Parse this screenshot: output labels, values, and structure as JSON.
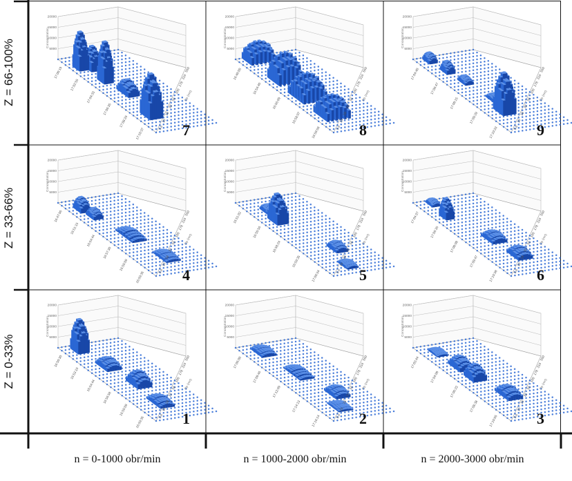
{
  "row_labels": [
    "Z = 66-100%",
    "Z = 33-66%",
    "Z = 0-33%"
  ],
  "column_labels": [
    "n = 0-1000 obr/min",
    "n = 1000-2000 obr/min",
    "n = 2000-3000 obr/min"
  ],
  "colors": {
    "bar": "#2a67d4",
    "bar_side": "#1847a8",
    "bar_top": "#5b8fe6",
    "frame": "#111111",
    "grid": "#b8b8b8"
  },
  "chart_data": [
    {
      "type": "bar",
      "panel": "7",
      "row": 0,
      "col": 0,
      "zticks": [
        "5000",
        "10000",
        "15000",
        "20000"
      ],
      "zlabel": "Concentration",
      "xticks": [
        "17:00:19",
        "17:02:55",
        "17:04:33",
        "17:06:35",
        "17:08:29",
        "17:10:37"
      ],
      "ylabel": "Dp (nm)",
      "yticks": [
        "560",
        "316",
        "178",
        "100",
        "56",
        "32",
        "18",
        "10",
        "5.6"
      ],
      "peaks": [
        {
          "x": 0.14,
          "y": 0.15,
          "h": 17500,
          "w": 0.05,
          "d": 0.12
        },
        {
          "x": 0.17,
          "y": 0.3,
          "h": 11000,
          "w": 0.05,
          "d": 0.12
        },
        {
          "x": 0.33,
          "y": 0.25,
          "h": 19000,
          "w": 0.05,
          "d": 0.12
        },
        {
          "x": 0.8,
          "y": 0.25,
          "h": 20000,
          "w": 0.08,
          "d": 0.18
        },
        {
          "x": 0.5,
          "y": 0.35,
          "h": 6000,
          "w": 0.1,
          "d": 0.15
        }
      ]
    },
    {
      "type": "bar",
      "panel": "8",
      "row": 0,
      "col": 1,
      "zticks": [
        "5000",
        "10000",
        "15000",
        "20000"
      ],
      "zlabel": "Concentration",
      "xticks": [
        "16:48:00",
        "16:54:40",
        "16:56:09",
        "16:58:07",
        "16:59:58"
      ],
      "ylabel": "Dp (nm)",
      "yticks": [
        "560",
        "316",
        "178",
        "100",
        "56",
        "32",
        "18",
        "10",
        "5.6"
      ],
      "peaks": [
        {
          "x": 0.05,
          "y": 0.3,
          "h": 9000,
          "w": 0.08,
          "d": 0.35
        },
        {
          "x": 0.32,
          "y": 0.3,
          "h": 13000,
          "w": 0.1,
          "d": 0.35
        },
        {
          "x": 0.55,
          "y": 0.3,
          "h": 11000,
          "w": 0.14,
          "d": 0.35
        },
        {
          "x": 0.8,
          "y": 0.3,
          "h": 9500,
          "w": 0.12,
          "d": 0.35
        }
      ]
    },
    {
      "type": "bar",
      "panel": "9",
      "row": 0,
      "col": 2,
      "zticks": [
        "5000",
        "10000",
        "15000",
        "20000"
      ],
      "zlabel": "Concentration",
      "xticks": [
        "17:04:48",
        "17:06:47",
        "17:08:15",
        "17:09:29",
        "17:10:33"
      ],
      "ylabel": "Dp (nm)",
      "yticks": [
        "560",
        "316",
        "178",
        "100",
        "56",
        "32",
        "18",
        "10",
        "5.6"
      ],
      "peaks": [
        {
          "x": 0.05,
          "y": 0.2,
          "h": 4000,
          "w": 0.05,
          "d": 0.1
        },
        {
          "x": 0.2,
          "y": 0.25,
          "h": 5000,
          "w": 0.05,
          "d": 0.1
        },
        {
          "x": 0.35,
          "y": 0.3,
          "h": 3000,
          "w": 0.06,
          "d": 0.1
        },
        {
          "x": 0.75,
          "y": 0.3,
          "h": 18500,
          "w": 0.08,
          "d": 0.18
        },
        {
          "x": 0.6,
          "y": 0.4,
          "h": 2500,
          "w": 0.08,
          "d": 0.15
        }
      ]
    },
    {
      "type": "bar",
      "panel": "4",
      "row": 1,
      "col": 0,
      "zticks": [
        "5000",
        "10000",
        "15000",
        "20000"
      ],
      "zlabel": "Concentration",
      "xticks": [
        "16:47:06",
        "16:51:15",
        "16:54:44",
        "16:57:30",
        "16:59:09",
        "16:59:36"
      ],
      "ylabel": "Dp (nm)",
      "yticks": [
        "560",
        "316",
        "178",
        "100",
        "56",
        "32",
        "18",
        "10",
        "5.6"
      ],
      "peaks": [
        {
          "x": 0.12,
          "y": 0.2,
          "h": 6000,
          "w": 0.06,
          "d": 0.12
        },
        {
          "x": 0.22,
          "y": 0.25,
          "h": 4000,
          "w": 0.06,
          "d": 0.12
        },
        {
          "x": 0.5,
          "y": 0.4,
          "h": 2500,
          "w": 0.15,
          "d": 0.2
        },
        {
          "x": 0.8,
          "y": 0.5,
          "h": 2000,
          "w": 0.12,
          "d": 0.2
        }
      ]
    },
    {
      "type": "bar",
      "panel": "5",
      "row": 1,
      "col": 1,
      "zticks": [
        "5000",
        "10000",
        "15000",
        "20000"
      ],
      "zlabel": "Concentration",
      "xticks": [
        "16:51:02",
        "16:55:56",
        "16:58:24",
        "16:59:35",
        "17:00:34"
      ],
      "ylabel": "Dp (nm)",
      "yticks": [
        "560",
        "316",
        "178",
        "100",
        "56",
        "32",
        "18",
        "10",
        "5.6"
      ],
      "peaks": [
        {
          "x": 0.28,
          "y": 0.25,
          "h": 13000,
          "w": 0.08,
          "d": 0.15
        },
        {
          "x": 0.15,
          "y": 0.3,
          "h": 3000,
          "w": 0.06,
          "d": 0.12
        },
        {
          "x": 0.7,
          "y": 0.55,
          "h": 3500,
          "w": 0.08,
          "d": 0.15
        },
        {
          "x": 0.9,
          "y": 0.4,
          "h": 2000,
          "w": 0.08,
          "d": 0.15
        }
      ]
    },
    {
      "type": "bar",
      "panel": "6",
      "row": 1,
      "col": 2,
      "zticks": [
        "5000",
        "10000",
        "15000",
        "20000"
      ],
      "zlabel": "Concentration",
      "xticks": [
        "17:04:37",
        "17:06:35",
        "17:08:08",
        "17:09:47",
        "17:10:38"
      ],
      "ylabel": "Dp (nm)",
      "yticks": [
        "560",
        "316",
        "178",
        "100",
        "56",
        "32",
        "18",
        "10",
        "5.6"
      ],
      "peaks": [
        {
          "x": 0.22,
          "y": 0.2,
          "h": 9000,
          "w": 0.05,
          "d": 0.1
        },
        {
          "x": 0.05,
          "y": 0.25,
          "h": 2500,
          "w": 0.05,
          "d": 0.1
        },
        {
          "x": 0.55,
          "y": 0.45,
          "h": 3500,
          "w": 0.1,
          "d": 0.2
        },
        {
          "x": 0.78,
          "y": 0.5,
          "h": 4000,
          "w": 0.1,
          "d": 0.2
        }
      ]
    },
    {
      "type": "bar",
      "panel": "1",
      "row": 2,
      "col": 0,
      "zticks": [
        "5000",
        "10000",
        "15000",
        "20000"
      ],
      "zlabel": "Concentration",
      "xticks": [
        "16:50:30",
        "16:53:10",
        "16:54:44",
        "16:56:58",
        "16:59:09",
        "16:59:36"
      ],
      "ylabel": "Dp (nm)",
      "yticks": [
        "560",
        "316",
        "178",
        "100",
        "56",
        "32",
        "18",
        "10",
        "5.6"
      ],
      "peaks": [
        {
          "x": 0.07,
          "y": 0.25,
          "h": 15000,
          "w": 0.06,
          "d": 0.15
        },
        {
          "x": 0.3,
          "y": 0.35,
          "h": 4000,
          "w": 0.1,
          "d": 0.2
        },
        {
          "x": 0.55,
          "y": 0.45,
          "h": 6000,
          "w": 0.1,
          "d": 0.2
        },
        {
          "x": 0.8,
          "y": 0.4,
          "h": 3000,
          "w": 0.12,
          "d": 0.2
        }
      ]
    },
    {
      "type": "bar",
      "panel": "2",
      "row": 2,
      "col": 1,
      "zticks": [
        "5000",
        "10000",
        "15000",
        "20000"
      ],
      "zlabel": "Concentration",
      "xticks": [
        "17:06:08",
        "17:09:46",
        "17:12:09",
        "17:14:13",
        "17:16:14"
      ],
      "ylabel": "Dp (nm)",
      "yticks": [
        "560",
        "316",
        "178",
        "100",
        "56",
        "32",
        "18",
        "10",
        "5.6"
      ],
      "peaks": [
        {
          "x": 0.1,
          "y": 0.3,
          "h": 2500,
          "w": 0.1,
          "d": 0.2
        },
        {
          "x": 0.4,
          "y": 0.4,
          "h": 2000,
          "w": 0.15,
          "d": 0.2
        },
        {
          "x": 0.7,
          "y": 0.55,
          "h": 3500,
          "w": 0.1,
          "d": 0.2
        },
        {
          "x": 0.85,
          "y": 0.35,
          "h": 1500,
          "w": 0.1,
          "d": 0.2
        }
      ]
    },
    {
      "type": "bar",
      "panel": "3",
      "row": 2,
      "col": 2,
      "zticks": [
        "5000",
        "10000",
        "15000",
        "20000"
      ],
      "zlabel": "Concentration",
      "xticks": [
        "17:03:44",
        "17:04:08",
        "17:06:22",
        "17:08:38",
        "17:10:05"
      ],
      "ylabel": "Dp (nm)",
      "yticks": [
        "560",
        "316",
        "178",
        "100",
        "56",
        "32",
        "18",
        "10",
        "5.6"
      ],
      "peaks": [
        {
          "x": 0.3,
          "y": 0.3,
          "h": 5000,
          "w": 0.1,
          "d": 0.18
        },
        {
          "x": 0.45,
          "y": 0.3,
          "h": 6500,
          "w": 0.08,
          "d": 0.18
        },
        {
          "x": 0.7,
          "y": 0.45,
          "h": 4000,
          "w": 0.12,
          "d": 0.2
        },
        {
          "x": 0.1,
          "y": 0.25,
          "h": 1500,
          "w": 0.08,
          "d": 0.15
        }
      ]
    }
  ]
}
